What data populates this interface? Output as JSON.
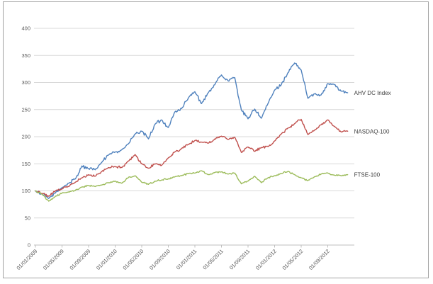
{
  "figure": {
    "background": "#ffffff",
    "border_color": "#a3a3a3",
    "gridline_color": "#d9d9d9",
    "axis_line_color": "#bfbfbf",
    "tick_label_color": "#595959",
    "series_label_color": "#3f3f3f"
  },
  "chart_data": {
    "type": "line",
    "title": "",
    "xlabel": "",
    "ylabel": "",
    "ylim": [
      0,
      400
    ],
    "y_ticks": [
      0,
      50,
      100,
      150,
      200,
      250,
      300,
      350,
      400
    ],
    "grid": true,
    "legend_position": "labels-at-line-ends-right",
    "x_tick_labels": [
      "01/01/2009",
      "01/05/2009",
      "01/09/2009",
      "01/01/2010",
      "01/05/2010",
      "01/09/2010",
      "01/01/2011",
      "01/05/2011",
      "01/09/2011",
      "01/01/2012",
      "01/05/2012",
      "01/09/2012"
    ],
    "x_months": [
      "01/2009",
      "02/2009",
      "03/2009",
      "04/2009",
      "05/2009",
      "06/2009",
      "07/2009",
      "08/2009",
      "09/2009",
      "10/2009",
      "11/2009",
      "12/2009",
      "01/2010",
      "02/2010",
      "03/2010",
      "04/2010",
      "05/2010",
      "06/2010",
      "07/2010",
      "08/2010",
      "09/2010",
      "10/2010",
      "11/2010",
      "12/2010",
      "01/2011",
      "02/2011",
      "03/2011",
      "04/2011",
      "05/2011",
      "06/2011",
      "07/2011",
      "08/2011",
      "09/2011",
      "10/2011",
      "11/2011",
      "12/2011",
      "01/2012",
      "02/2012",
      "03/2012",
      "04/2012",
      "05/2012",
      "06/2012",
      "07/2012",
      "08/2012",
      "09/2012",
      "10/2012",
      "11/2012",
      "12/2012"
    ],
    "series": [
      {
        "name": "AHV DC Index",
        "color": "#4f81bd",
        "noise": 3.5,
        "values": [
          100,
          94,
          86,
          96,
          106,
          114,
          122,
          146,
          141,
          139,
          153,
          166,
          172,
          176,
          187,
          205,
          210,
          196,
          223,
          231,
          217,
          246,
          252,
          271,
          283,
          261,
          281,
          296,
          314,
          303,
          309,
          249,
          233,
          251,
          234,
          261,
          286,
          296,
          318,
          336,
          323,
          271,
          279,
          277,
          298,
          296,
          284,
          281
        ]
      },
      {
        "name": "NASDAQ-100",
        "color": "#c0504d",
        "noise": 2.4,
        "values": [
          100,
          95,
          90,
          100,
          104,
          108,
          116,
          124,
          130,
          127,
          136,
          143,
          145,
          143,
          155,
          167,
          150,
          142,
          150,
          147,
          161,
          172,
          178,
          186,
          193,
          190,
          188,
          196,
          201,
          195,
          199,
          171,
          181,
          173,
          180,
          182,
          192,
          205,
          216,
          224,
          232,
          204,
          212,
          222,
          231,
          219,
          209,
          210
        ]
      },
      {
        "name": "FTSE-100",
        "color": "#9bbb59",
        "noise": 1.6,
        "values": [
          100,
          94,
          81,
          90,
          96,
          98,
          101,
          107,
          110,
          108,
          111,
          115,
          118,
          114,
          125,
          128,
          116,
          112,
          118,
          120,
          122,
          126,
          128,
          132,
          133,
          137,
          130,
          134,
          135,
          131,
          133,
          113,
          118,
          127,
          115,
          124,
          128,
          132,
          136,
          130,
          124,
          119,
          126,
          131,
          133,
          129,
          128,
          130
        ]
      }
    ]
  }
}
